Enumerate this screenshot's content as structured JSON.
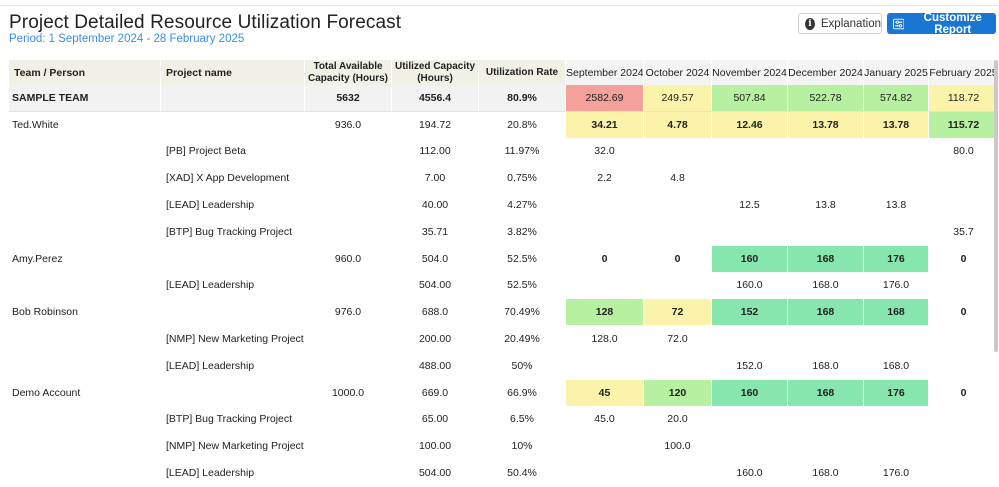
{
  "header": {
    "title": "Project Detailed Resource Utilization Forecast",
    "period": "Period: 1 September 2024 - 28 February 2025"
  },
  "toolbar": {
    "explanation_label": "Explanation",
    "customize_label": "Customize Report"
  },
  "colors": {
    "red": "#f4a09b",
    "yellow": "#fbf3a9",
    "lightgreen": "#b7f0a0",
    "green": "#86e6ae",
    "accent": "#1976d2"
  },
  "table": {
    "columns": {
      "team": "Team / Person",
      "project": "Project name",
      "capacity": "Total Available Capacity (Hours)",
      "utilized": "Utilized Capacity (Hours)",
      "rate": "Utilization Rate",
      "months": [
        "September 2024",
        "October 2024",
        "November 2024",
        "December 2024",
        "January 2025",
        "February 2025"
      ]
    },
    "rows": [
      {
        "type": "team",
        "team": "SAMPLE TEAM",
        "project": "",
        "capacity": "5632",
        "utilized": "4556.4",
        "rate": "80.9%",
        "months": [
          "2582.69",
          "249.57",
          "507.84",
          "522.78",
          "574.82",
          "118.72"
        ],
        "colors": [
          "red",
          "yellow",
          "lightgreen",
          "lightgreen",
          "lightgreen",
          "yellow"
        ]
      },
      {
        "type": "person",
        "team": "Ted.White",
        "project": "",
        "capacity": "936.0",
        "utilized": "194.72",
        "rate": "20.8%",
        "months": [
          "34.21",
          "4.78",
          "12.46",
          "13.78",
          "13.78",
          "115.72"
        ],
        "colors": [
          "yellow",
          "yellow",
          "yellow",
          "yellow",
          "yellow",
          "lightgreen"
        ]
      },
      {
        "type": "project",
        "team": "",
        "project": "[PB] Project Beta",
        "capacity": "",
        "utilized": "112.00",
        "rate": "11.97%",
        "months": [
          "32.0",
          "",
          "",
          "",
          "",
          "80.0"
        ]
      },
      {
        "type": "project",
        "team": "",
        "project": "[XAD] X App Development",
        "capacity": "",
        "utilized": "7.00",
        "rate": "0.75%",
        "months": [
          "2.2",
          "4.8",
          "",
          "",
          "",
          ""
        ]
      },
      {
        "type": "project",
        "team": "",
        "project": "[LEAD] Leadership",
        "capacity": "",
        "utilized": "40.00",
        "rate": "4.27%",
        "months": [
          "",
          "",
          "12.5",
          "13.8",
          "13.8",
          ""
        ]
      },
      {
        "type": "project",
        "team": "",
        "project": "[BTP] Bug Tracking Project",
        "capacity": "",
        "utilized": "35.71",
        "rate": "3.82%",
        "months": [
          "",
          "",
          "",
          "",
          "",
          "35.7"
        ]
      },
      {
        "type": "person",
        "team": "Amy.Perez",
        "project": "",
        "capacity": "960.0",
        "utilized": "504.0",
        "rate": "52.5%",
        "months": [
          "0",
          "0",
          "160",
          "168",
          "176",
          "0"
        ],
        "colors": [
          "",
          "",
          "green",
          "green",
          "green",
          ""
        ]
      },
      {
        "type": "project",
        "team": "",
        "project": "[LEAD] Leadership",
        "capacity": "",
        "utilized": "504.00",
        "rate": "52.5%",
        "months": [
          "",
          "",
          "160.0",
          "168.0",
          "176.0",
          ""
        ]
      },
      {
        "type": "person",
        "team": "Bob Robinson",
        "project": "",
        "capacity": "976.0",
        "utilized": "688.0",
        "rate": "70.49%",
        "months": [
          "128",
          "72",
          "152",
          "168",
          "168",
          "0"
        ],
        "colors": [
          "lightgreen",
          "yellow",
          "green",
          "green",
          "green",
          ""
        ]
      },
      {
        "type": "project",
        "team": "",
        "project": "[NMP] New Marketing Project",
        "capacity": "",
        "utilized": "200.00",
        "rate": "20.49%",
        "months": [
          "128.0",
          "72.0",
          "",
          "",
          "",
          ""
        ]
      },
      {
        "type": "project",
        "team": "",
        "project": "[LEAD] Leadership",
        "capacity": "",
        "utilized": "488.00",
        "rate": "50%",
        "months": [
          "",
          "",
          "152.0",
          "168.0",
          "168.0",
          ""
        ]
      },
      {
        "type": "person",
        "team": "Demo Account",
        "project": "",
        "capacity": "1000.0",
        "utilized": "669.0",
        "rate": "66.9%",
        "months": [
          "45",
          "120",
          "160",
          "168",
          "176",
          "0"
        ],
        "colors": [
          "yellow",
          "lightgreen",
          "green",
          "green",
          "green",
          ""
        ]
      },
      {
        "type": "project",
        "team": "",
        "project": "[BTP] Bug Tracking Project",
        "capacity": "",
        "utilized": "65.00",
        "rate": "6.5%",
        "months": [
          "45.0",
          "20.0",
          "",
          "",
          "",
          ""
        ]
      },
      {
        "type": "project",
        "team": "",
        "project": "[NMP] New Marketing Project",
        "capacity": "",
        "utilized": "100.00",
        "rate": "10%",
        "months": [
          "",
          "100.0",
          "",
          "",
          "",
          ""
        ]
      },
      {
        "type": "project",
        "team": "",
        "project": "[LEAD] Leadership",
        "capacity": "",
        "utilized": "504.00",
        "rate": "50.4%",
        "months": [
          "",
          "",
          "160.0",
          "168.0",
          "176.0",
          ""
        ]
      }
    ]
  }
}
